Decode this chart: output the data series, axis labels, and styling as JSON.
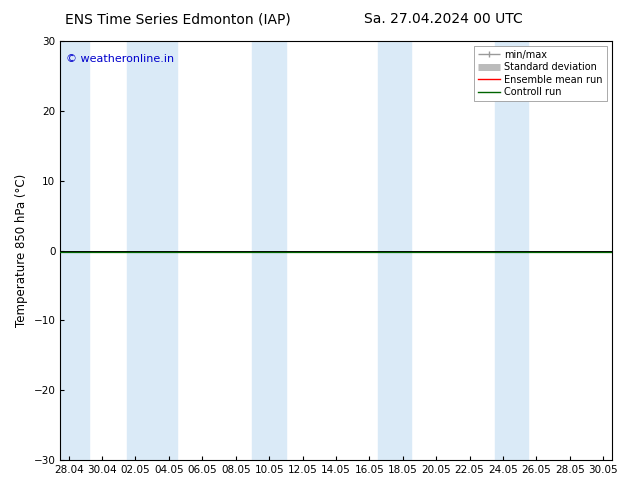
{
  "title_left": "ENS Time Series Edmonton (IAP)",
  "title_right": "Sa. 27.04.2024 00 UTC",
  "ylabel": "Temperature 850 hPa (°C)",
  "watermark": "© weatheronline.in",
  "ylim": [
    -30,
    30
  ],
  "yticks": [
    -30,
    -20,
    -10,
    0,
    10,
    20,
    30
  ],
  "x_tick_labels": [
    "28.04",
    "30.04",
    "02.05",
    "04.05",
    "06.05",
    "08.05",
    "10.05",
    "12.05",
    "14.05",
    "16.05",
    "18.05",
    "20.05",
    "22.05",
    "24.05",
    "26.05",
    "28.05",
    "30.05"
  ],
  "x_tick_positions": [
    0,
    2,
    4,
    6,
    8,
    10,
    12,
    14,
    16,
    18,
    20,
    22,
    24,
    26,
    28,
    30,
    32
  ],
  "xlim": [
    -0.5,
    32.5
  ],
  "blue_bands": [
    [
      -0.5,
      1.2
    ],
    [
      3.5,
      6.5
    ],
    [
      11.0,
      13.0
    ],
    [
      18.5,
      20.5
    ],
    [
      25.5,
      27.5
    ]
  ],
  "blue_band_color": "#daeaf7",
  "control_run_y": -0.15,
  "bg_color": "#ffffff",
  "legend_entries": [
    "min/max",
    "Standard deviation",
    "Ensemble mean run",
    "Controll run"
  ],
  "legend_line_colors": [
    "#999999",
    "#bbbbbb",
    "#ff0000",
    "#006400"
  ],
  "title_fontsize": 10,
  "tick_fontsize": 7.5,
  "ylabel_fontsize": 8.5,
  "watermark_color": "#0000cc",
  "watermark_fontsize": 8
}
